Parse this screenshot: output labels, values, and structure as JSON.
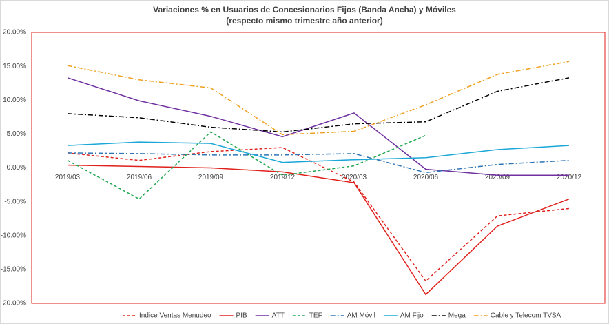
{
  "chart_data": {
    "type": "line",
    "title": "Variaciones % en Usuarios de Concesionarios Fijos (Banda Ancha) y Móviles",
    "subtitle": "(respecto mismo trimestre año anterior)",
    "categories": [
      "2019/03",
      "2019/06",
      "2019/09",
      "2019/12",
      "2020/03",
      "2020/06",
      "2020/09",
      "2020/12"
    ],
    "ylim": [
      -20,
      20
    ],
    "yticks": [
      {
        "value": -20,
        "label": "-20.00%"
      },
      {
        "value": -15,
        "label": "-15.00%"
      },
      {
        "value": -10,
        "label": "-10.00%"
      },
      {
        "value": -5,
        "label": "-5.00%"
      },
      {
        "value": 0,
        "label": "0.00%"
      },
      {
        "value": 5,
        "label": "5.00%"
      },
      {
        "value": 10,
        "label": "10.00%"
      },
      {
        "value": 15,
        "label": "15.00%"
      },
      {
        "value": 20,
        "label": "20.00%"
      }
    ],
    "legend": "bottom",
    "series": [
      {
        "name": "Indice Ventas Menudeo",
        "color": "#e0201b",
        "dash": "dashed",
        "values": [
          2.2,
          1.1,
          2.4,
          3.0,
          -2.1,
          -16.7,
          -7.1,
          -6.0
        ]
      },
      {
        "name": "PIB",
        "color": "#e0201b",
        "dash": "solid",
        "values": [
          0.4,
          0.2,
          0.0,
          -0.6,
          -2.2,
          -18.7,
          -8.6,
          -4.6
        ]
      },
      {
        "name": "ATT",
        "color": "#7030a0",
        "dash": "solid",
        "values": [
          13.3,
          9.9,
          7.6,
          4.6,
          8.1,
          -0.2,
          -1.1,
          -1.1
        ]
      },
      {
        "name": "TEF",
        "color": "#1fa84f",
        "dash": "dashed",
        "values": [
          1.1,
          -4.6,
          5.3,
          -1.1,
          0.3,
          4.8,
          null,
          null
        ]
      },
      {
        "name": "AM Móvil",
        "color": "#2e75b6",
        "dash": "dashdot",
        "values": [
          2.2,
          2.1,
          1.9,
          1.9,
          2.1,
          -0.7,
          0.5,
          1.1
        ]
      },
      {
        "name": "AM Fijo",
        "color": "#1aa7d8",
        "dash": "solid",
        "values": [
          3.3,
          3.8,
          3.6,
          0.8,
          1.2,
          1.5,
          2.7,
          3.3
        ]
      },
      {
        "name": "Mega",
        "color": "#000000",
        "dash": "dashdot",
        "values": [
          8.0,
          7.4,
          6.0,
          5.3,
          6.5,
          6.8,
          11.3,
          13.3
        ]
      },
      {
        "name": "Cable y Telecom TVSA",
        "color": "#f0a020",
        "dash": "dashdot",
        "values": [
          15.1,
          13.0,
          11.8,
          4.9,
          5.4,
          9.3,
          13.8,
          15.7
        ]
      }
    ]
  }
}
